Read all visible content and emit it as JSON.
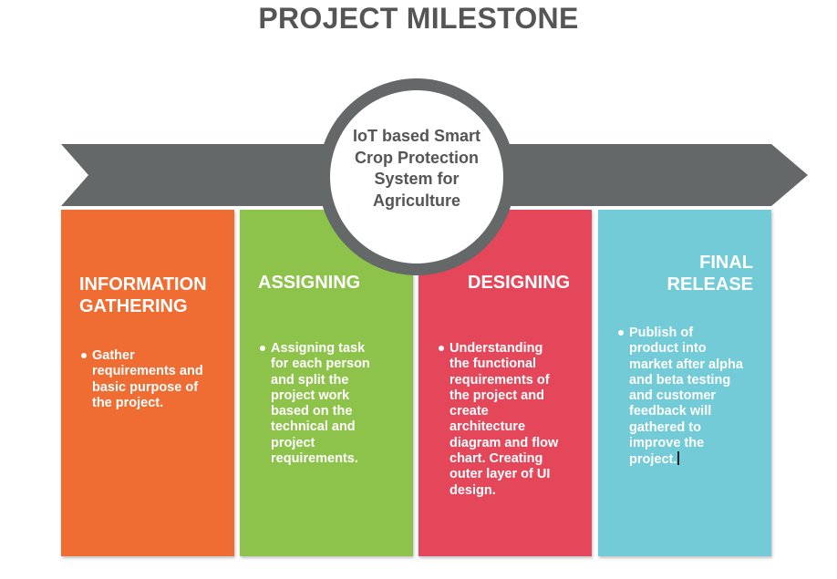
{
  "title": "PROJECT MILESTONE",
  "center": {
    "text": "IoT based Smart Crop Protection System for Agriculture"
  },
  "colors": {
    "arrow": "#646868",
    "stage1": "#ef6c33",
    "stage2": "#8dc34a",
    "stage3": "#e5475a",
    "stage4": "#72cbd6",
    "title": "#555555"
  },
  "stages": [
    {
      "heading_lines": [
        "INFORMATION",
        "GATHERING"
      ],
      "bullet_lines": [
        "Gather",
        "requirements and",
        "basic purpose of",
        "the project."
      ]
    },
    {
      "heading_lines": [
        "ASSIGNING"
      ],
      "bullet_lines": [
        "Assigning task",
        "for each person",
        "and split the",
        "project work",
        "based on the",
        "technical and",
        "project",
        "requirements."
      ]
    },
    {
      "heading_lines": [
        "DESIGNING"
      ],
      "bullet_lines": [
        "Understanding",
        "the functional",
        "requirements of",
        "the project and",
        "create",
        "architecture",
        "diagram and flow",
        "chart. Creating",
        "outer layer of UI",
        "design."
      ]
    },
    {
      "heading_lines": [
        "FINAL",
        "RELEASE"
      ],
      "bullet_lines": [
        "Publish of",
        "product into",
        "market after alpha",
        "and beta testing",
        "and customer",
        "feedback will",
        "gathered to",
        "improve the",
        "project."
      ]
    }
  ]
}
